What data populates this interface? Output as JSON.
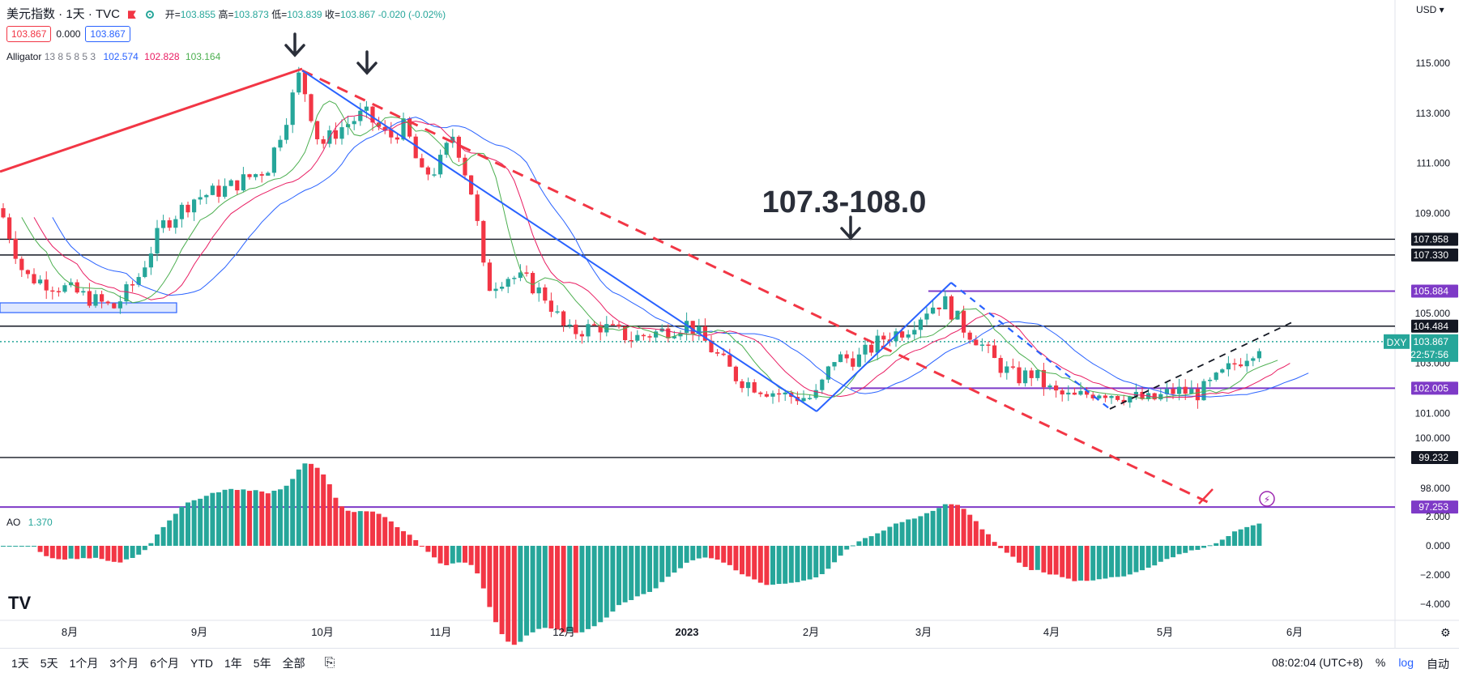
{
  "header": {
    "symbol_title": "美元指数 · 1天 · TVC",
    "open_label": "开=",
    "open": "103.855",
    "high_label": "高=",
    "high": "103.873",
    "low_label": "低=",
    "low": "103.839",
    "close_label": "收=",
    "close": "103.867",
    "change": "-0.020 (-0.02%)",
    "bid": "103.867",
    "spread": "0.000",
    "ask": "103.867",
    "currency": "USD"
  },
  "indicators": {
    "alligator_name": "Alligator",
    "alligator_params": "13 8 5 8 5 3",
    "jaw": "102.574",
    "teeth": "102.828",
    "lips": "103.164",
    "ao_name": "AO",
    "ao_value": "1.370"
  },
  "annotation": {
    "zone_label": "107.3-108.0"
  },
  "price_axis": {
    "ticks": [
      "115.000",
      "113.000",
      "111.000",
      "109.000",
      "105.000",
      "103.000",
      "101.000",
      "100.000",
      "98.000"
    ],
    "ymin": 96.8,
    "ymax": 116.4
  },
  "ao_axis": {
    "ticks": [
      "2.000",
      "0.000",
      "−2.000",
      "−4.000"
    ]
  },
  "level_tags": [
    {
      "value": "107.958",
      "price": 107.958,
      "color": "#131722"
    },
    {
      "value": "107.330",
      "price": 107.33,
      "color": "#131722"
    },
    {
      "value": "105.884",
      "price": 105.884,
      "color": "#7e3ac7"
    },
    {
      "value": "104.484",
      "price": 104.484,
      "color": "#131722"
    },
    {
      "value": "102.005",
      "price": 102.005,
      "color": "#7e3ac7"
    },
    {
      "value": "99.232",
      "price": 99.232,
      "color": "#131722"
    },
    {
      "value": "97.253",
      "price": 97.253,
      "color": "#7e3ac7"
    }
  ],
  "current": {
    "symbol": "DXY",
    "price": "103.867",
    "countdown": "22:57:56",
    "value": 103.867
  },
  "time_axis": [
    "8月",
    "9月",
    "10月",
    "11月",
    "12月",
    "2023",
    "2月",
    "3月",
    "4月",
    "5月",
    "6月"
  ],
  "toolbar": {
    "ranges": [
      "1天",
      "5天",
      "1个月",
      "3个月",
      "6个月",
      "YTD",
      "1年",
      "5年",
      "全部"
    ],
    "clock": "08:02:04 (UTC+8)",
    "pct": "%",
    "log": "log",
    "auto": "自动"
  },
  "colors": {
    "up": "#26a69a",
    "down": "#f23645",
    "jaw": "#2962ff",
    "teeth": "#e91e63",
    "lips": "#4caf50",
    "purple": "#7e3ac7"
  },
  "chart_data": {
    "type": "line",
    "title": "美元指数 · 1天 · TVC",
    "x": [
      "8月",
      "9月",
      "10月",
      "11月",
      "12月",
      "2023",
      "2月",
      "3月",
      "4月",
      "5月",
      "6月"
    ],
    "series": [
      {
        "name": "DXY",
        "values": [
          106.3,
          108.7,
          113.5,
          111.0,
          105.5,
          104.0,
          102.0,
          104.8,
          103.0,
          101.8,
          103.9
        ]
      }
    ],
    "ylim": [
      96.8,
      116.4
    ]
  }
}
